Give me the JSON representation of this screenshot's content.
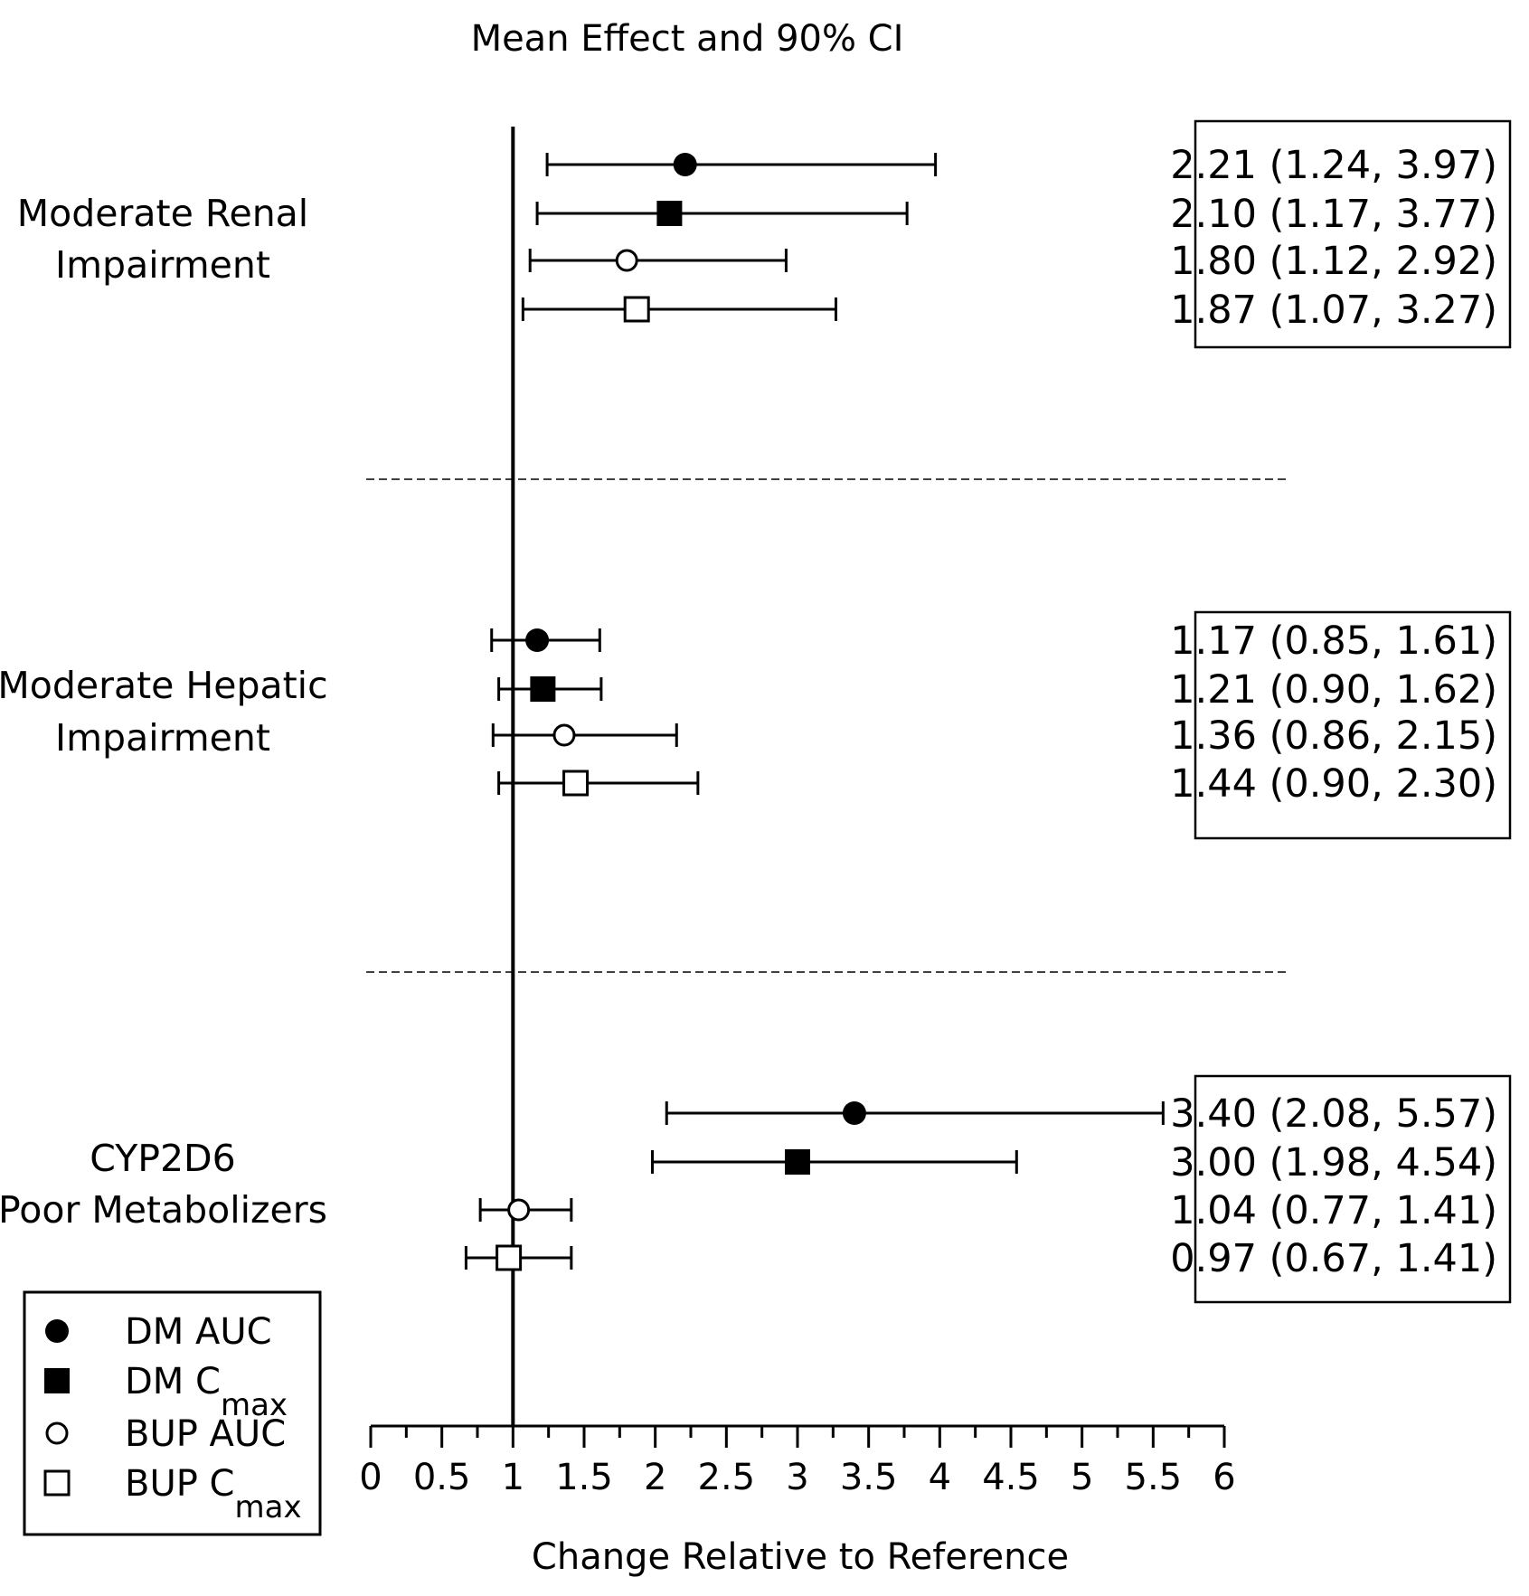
{
  "chart_data": {
    "type": "forest",
    "title": "Mean Effect and 90% CI",
    "xlabel": "Change Relative to Reference",
    "xlim": [
      0,
      6
    ],
    "xticks": [
      "0",
      "0.5",
      "1",
      "1.5",
      "2",
      "2.5",
      "3",
      "3.5",
      "4",
      "4.5",
      "5",
      "5.5",
      "6"
    ],
    "reference_line": 1,
    "groups": [
      {
        "label_lines": [
          "Moderate Renal",
          "Impairment"
        ],
        "rows": [
          {
            "series": "DM AUC",
            "mean": 2.21,
            "low": 1.24,
            "high": 3.97,
            "text": "2.21 (1.24, 3.97)"
          },
          {
            "series": "DM Cmax",
            "mean": 2.1,
            "low": 1.17,
            "high": 3.77,
            "text": "2.10 (1.17, 3.77)"
          },
          {
            "series": "BUP AUC",
            "mean": 1.8,
            "low": 1.12,
            "high": 2.92,
            "text": "1.80 (1.12, 2.92)"
          },
          {
            "series": "BUP Cmax",
            "mean": 1.87,
            "low": 1.07,
            "high": 3.27,
            "text": "1.87 (1.07, 3.27)"
          }
        ]
      },
      {
        "label_lines": [
          "Moderate Hepatic",
          "Impairment"
        ],
        "rows": [
          {
            "series": "DM AUC",
            "mean": 1.17,
            "low": 0.85,
            "high": 1.61,
            "text": "1.17 (0.85, 1.61)"
          },
          {
            "series": "DM Cmax",
            "mean": 1.21,
            "low": 0.9,
            "high": 1.62,
            "text": "1.21 (0.90, 1.62)"
          },
          {
            "series": "BUP AUC",
            "mean": 1.36,
            "low": 0.86,
            "high": 2.15,
            "text": "1.36 (0.86, 2.15)"
          },
          {
            "series": "BUP Cmax",
            "mean": 1.44,
            "low": 0.9,
            "high": 2.3,
            "text": "1.44 (0.90, 2.30)"
          }
        ]
      },
      {
        "label_lines": [
          "CYP2D6",
          "Poor Metabolizers"
        ],
        "rows": [
          {
            "series": "DM AUC",
            "mean": 3.4,
            "low": 2.08,
            "high": 5.57,
            "text": "3.40 (2.08, 5.57)"
          },
          {
            "series": "DM Cmax",
            "mean": 3.0,
            "low": 1.98,
            "high": 4.54,
            "text": "3.00 (1.98, 4.54)"
          },
          {
            "series": "BUP AUC",
            "mean": 1.04,
            "low": 0.77,
            "high": 1.41,
            "text": "1.04 (0.77, 1.41)"
          },
          {
            "series": "BUP Cmax",
            "mean": 0.97,
            "low": 0.67,
            "high": 1.41,
            "text": "0.97 (0.67, 1.41)"
          }
        ]
      }
    ],
    "legend": [
      {
        "marker": "filled-circle",
        "label": "DM AUC",
        "sub": ""
      },
      {
        "marker": "filled-square",
        "label": "DM C",
        "sub": "max"
      },
      {
        "marker": "open-circle",
        "label": "BUP AUC",
        "sub": ""
      },
      {
        "marker": "open-square",
        "label": "BUP C",
        "sub": "max"
      }
    ],
    "legend_position": "bottom-left",
    "colors": {
      "ink": "#000000",
      "background": "#ffffff"
    }
  }
}
